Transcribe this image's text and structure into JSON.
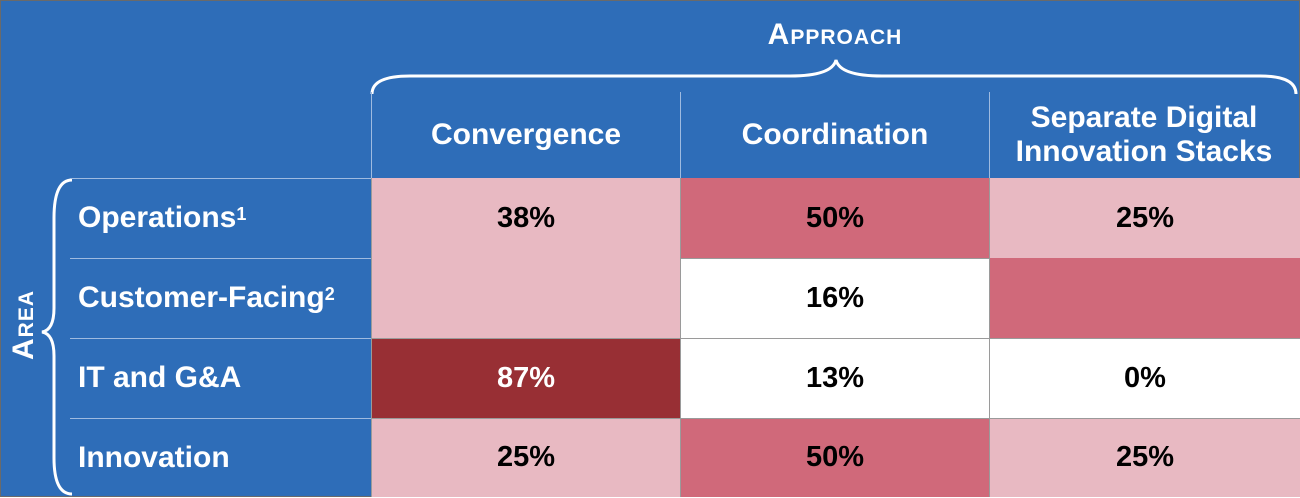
{
  "approach_label": "Approach",
  "area_label": "Area",
  "columns": [
    "Convergence",
    "Coordination",
    "Separate Digital Innovation Stacks"
  ],
  "rows": [
    {
      "label": "Operations",
      "note": "1"
    },
    {
      "label": "Customer-Facing",
      "note": "2"
    },
    {
      "label": "IT and G&A",
      "note": ""
    },
    {
      "label": "Innovation",
      "note": ""
    }
  ],
  "cells": {
    "ops_convergence": "38%",
    "ops_coordination": "50%",
    "ops_separate": "25%",
    "cust_coordination": "16%",
    "it_convergence": "87%",
    "it_coordination": "13%",
    "it_separate": "0%",
    "inn_convergence": "25%",
    "inn_coordination": "50%",
    "inn_separate": "25%"
  },
  "colors": {
    "header_blue": "#2e6db8",
    "light_pink": "#e8b9c2",
    "mid_pink": "#d0697a",
    "dark_red": "#982f34",
    "white": "#ffffff"
  }
}
